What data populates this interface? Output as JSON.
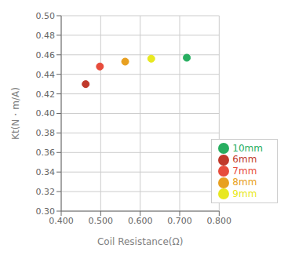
{
  "chart_data": {
    "type": "scatter",
    "xlabel": "Coil Resistance(Ω)",
    "ylabel": "Kt(N・m/A)",
    "series": [
      {
        "name": "6mm",
        "color": "#C0392B",
        "x": [
          0.462
        ],
        "values": [
          0.43
        ]
      },
      {
        "name": "7mm",
        "color": "#E74C3C",
        "x": [
          0.498
        ],
        "values": [
          0.448
        ]
      },
      {
        "name": "8mm",
        "color": "#E8A020",
        "x": [
          0.562
        ],
        "values": [
          0.453
        ]
      },
      {
        "name": "9mm",
        "color": "#E8E820",
        "x": [
          0.628
        ],
        "values": [
          0.456
        ]
      },
      {
        "name": "10mm",
        "color": "#27AE60",
        "x": [
          0.718
        ],
        "values": [
          0.457
        ]
      }
    ],
    "xlim": [
      0.4,
      0.8
    ],
    "ylim": [
      0.3,
      0.5
    ],
    "xticks": [
      {
        "value": 0.4,
        "label": "0.400"
      },
      {
        "value": 0.5,
        "label": "0.500"
      },
      {
        "value": 0.6,
        "label": "0.600"
      },
      {
        "value": 0.7,
        "label": "0.700"
      },
      {
        "value": 0.8,
        "label": "0.800"
      }
    ],
    "yticks": [
      {
        "value": 0.3,
        "label": "0.30"
      },
      {
        "value": 0.32,
        "label": "0.32"
      },
      {
        "value": 0.34,
        "label": "0.34"
      },
      {
        "value": 0.36,
        "label": "0.36"
      },
      {
        "value": 0.38,
        "label": "0.38"
      },
      {
        "value": 0.4,
        "label": "0.40"
      },
      {
        "value": 0.42,
        "label": "0.42"
      },
      {
        "value": 0.44,
        "label": "0.44"
      },
      {
        "value": 0.46,
        "label": "0.46"
      },
      {
        "value": 0.48,
        "label": "0.48"
      },
      {
        "value": 0.5,
        "label": "0.50"
      }
    ],
    "grid": true,
    "legend": "lower right"
  }
}
